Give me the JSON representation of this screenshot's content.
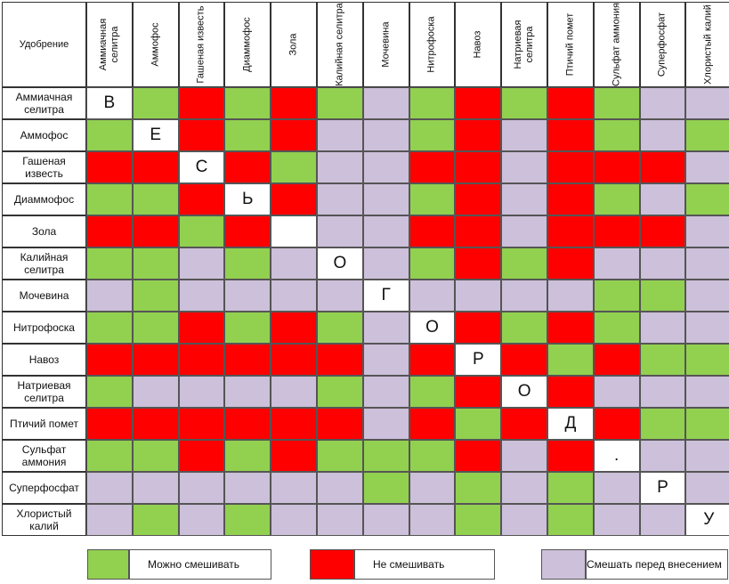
{
  "colors": {
    "mix": "#92d050",
    "no": "#ff0000",
    "before": "#ccc0da",
    "diag": "#ffffff"
  },
  "chart_data": {
    "type": "table",
    "corner_label": "Удобрение",
    "columns": [
      "Аммиачная селитра",
      "Аммофос",
      "Гашеная известь",
      "Диаммофос",
      "Зола",
      "Калийная селитра",
      "Мочевина",
      "Нитрофоска",
      "Навоз",
      "Натриевая селитра",
      "Птичий помет",
      "Сульфат аммония",
      "Суперфосфат",
      "Хлористый калий"
    ],
    "rows": [
      "Аммиачная селитра",
      "Аммофос",
      "Гашеная известь",
      "Диаммофос",
      "Зола",
      "Калийная селитра",
      "Мочевина",
      "Нитрофоска",
      "Навоз",
      "Натриевая селитра",
      "Птичий помет",
      "Сульфат аммония",
      "Суперфосфат",
      "Хлористый калий"
    ],
    "cells": [
      [
        "D",
        "G",
        "R",
        "G",
        "R",
        "G",
        "P",
        "G",
        "R",
        "G",
        "R",
        "G",
        "P",
        "P"
      ],
      [
        "G",
        "D",
        "R",
        "G",
        "R",
        "P",
        "P",
        "G",
        "R",
        "P",
        "R",
        "G",
        "P",
        "G"
      ],
      [
        "R",
        "R",
        "D",
        "R",
        "G",
        "P",
        "P",
        "R",
        "R",
        "P",
        "R",
        "R",
        "R",
        "P"
      ],
      [
        "G",
        "G",
        "R",
        "D",
        "R",
        "P",
        "P",
        "G",
        "R",
        "P",
        "R",
        "G",
        "P",
        "G"
      ],
      [
        "R",
        "R",
        "G",
        "R",
        "D",
        "P",
        "P",
        "R",
        "R",
        "P",
        "R",
        "R",
        "R",
        "P"
      ],
      [
        "G",
        "G",
        "P",
        "G",
        "P",
        "D",
        "P",
        "G",
        "R",
        "G",
        "R",
        "P",
        "P",
        "P"
      ],
      [
        "P",
        "G",
        "P",
        "P",
        "P",
        "P",
        "D",
        "P",
        "P",
        "P",
        "P",
        "G",
        "G",
        "P"
      ],
      [
        "G",
        "G",
        "R",
        "G",
        "R",
        "G",
        "P",
        "D",
        "R",
        "G",
        "R",
        "G",
        "P",
        "P"
      ],
      [
        "R",
        "R",
        "R",
        "R",
        "R",
        "R",
        "P",
        "R",
        "D",
        "R",
        "G",
        "R",
        "G",
        "G"
      ],
      [
        "G",
        "P",
        "P",
        "P",
        "P",
        "G",
        "P",
        "G",
        "R",
        "D",
        "R",
        "P",
        "P",
        "P"
      ],
      [
        "R",
        "R",
        "R",
        "R",
        "R",
        "R",
        "P",
        "R",
        "G",
        "R",
        "D",
        "R",
        "G",
        "G"
      ],
      [
        "G",
        "G",
        "R",
        "G",
        "R",
        "G",
        "G",
        "G",
        "R",
        "P",
        "R",
        "D",
        "P",
        "P"
      ],
      [
        "P",
        "P",
        "P",
        "P",
        "P",
        "P",
        "G",
        "P",
        "G",
        "P",
        "G",
        "P",
        "D",
        "P"
      ],
      [
        "P",
        "G",
        "P",
        "G",
        "P",
        "P",
        "P",
        "P",
        "G",
        "P",
        "G",
        "P",
        "P",
        "D"
      ]
    ],
    "diagonal_letters": [
      "В",
      "Е",
      "С",
      "Ь",
      "",
      "О",
      "Г",
      "О",
      "Р",
      "О",
      "Д",
      ".",
      "Р",
      "У"
    ],
    "legend": [
      {
        "key": "G",
        "label": "Можно смешивать"
      },
      {
        "key": "R",
        "label": "Не смешивать"
      },
      {
        "key": "P",
        "label": "Смешать перед внесением"
      }
    ]
  }
}
